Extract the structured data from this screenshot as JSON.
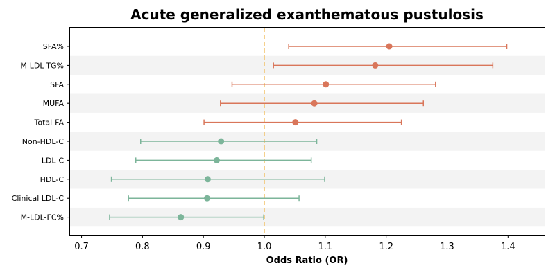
{
  "chart_data": {
    "type": "forest",
    "title": "Acute generalized exanthematous pustulosis",
    "xlabel": "Odds Ratio (OR)",
    "ylabel": "",
    "xlim": [
      0.68,
      1.46
    ],
    "xticks": [
      0.7,
      0.8,
      0.9,
      1.0,
      1.1,
      1.2,
      1.3,
      1.4
    ],
    "xtick_labels": [
      "0.7",
      "0.8",
      "0.9",
      "1.0",
      "1.1",
      "1.2",
      "1.3",
      "1.4"
    ],
    "reference_line": 1.0,
    "reference_color": "#f2c46d",
    "colors": {
      "risk": "#d9765a",
      "protective": "#7cb59a",
      "band": "#f3f3f3"
    },
    "grid": false,
    "rows": [
      {
        "label": "SFA%",
        "or": 1.205,
        "lower": 1.04,
        "upper": 1.398,
        "group": "risk"
      },
      {
        "label": "M-LDL-TG%",
        "or": 1.182,
        "lower": 1.015,
        "upper": 1.375,
        "group": "risk"
      },
      {
        "label": "SFA",
        "or": 1.101,
        "lower": 0.947,
        "upper": 1.281,
        "group": "risk"
      },
      {
        "label": "MUFA",
        "or": 1.082,
        "lower": 0.928,
        "upper": 1.261,
        "group": "risk"
      },
      {
        "label": "Total-FA",
        "or": 1.051,
        "lower": 0.901,
        "upper": 1.225,
        "group": "risk"
      },
      {
        "label": "Non-HDL-C",
        "or": 0.929,
        "lower": 0.797,
        "upper": 1.086,
        "group": "protective"
      },
      {
        "label": "LDL-C",
        "or": 0.922,
        "lower": 0.789,
        "upper": 1.077,
        "group": "protective"
      },
      {
        "label": "HDL-C",
        "or": 0.907,
        "lower": 0.749,
        "upper": 1.099,
        "group": "protective"
      },
      {
        "label": "Clinical LDL-C",
        "or": 0.906,
        "lower": 0.777,
        "upper": 1.057,
        "group": "protective"
      },
      {
        "label": "M-LDL-FC%",
        "or": 0.863,
        "lower": 0.746,
        "upper": 0.999,
        "group": "protective"
      }
    ]
  }
}
